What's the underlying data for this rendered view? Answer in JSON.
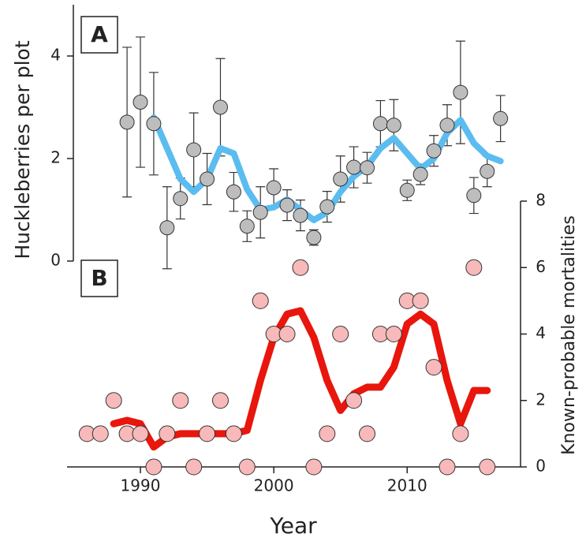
{
  "chart_data": [
    {
      "type": "scatter",
      "panel_label": "A",
      "y_label": "Huckleberries per plot",
      "color": "#bdbdbd",
      "trend_color": "#5bbcf0",
      "x": [
        1989,
        1990,
        1991,
        1992,
        1993,
        1994,
        1995,
        1996,
        1997,
        1998,
        1999,
        2000,
        2001,
        2002,
        2003,
        2004,
        2005,
        2006,
        2007,
        2008,
        2009,
        2010,
        2011,
        2012,
        2013,
        2014,
        2015,
        2016,
        2017
      ],
      "values": [
        2.71,
        3.1,
        2.68,
        0.65,
        1.22,
        2.17,
        1.6,
        3.0,
        1.35,
        0.68,
        0.95,
        1.43,
        1.09,
        0.89,
        0.46,
        1.06,
        1.6,
        1.83,
        1.82,
        2.68,
        2.65,
        1.38,
        1.69,
        2.15,
        2.65,
        3.29,
        1.28,
        1.75,
        2.78
      ],
      "errors": [
        1.46,
        1.27,
        1.0,
        0.8,
        0.4,
        0.72,
        0.5,
        0.95,
        0.38,
        0.3,
        0.5,
        0.37,
        0.3,
        0.3,
        0.15,
        0.3,
        0.45,
        0.4,
        0.3,
        0.45,
        0.5,
        0.2,
        0.2,
        0.3,
        0.4,
        1.0,
        0.35,
        0.3,
        0.45
      ],
      "trend_x": [
        1991,
        1992,
        1993,
        1994,
        1995,
        1996,
        1997,
        1998,
        1999,
        2000,
        2001,
        2002,
        2003,
        2004,
        2005,
        2006,
        2007,
        2008,
        2009,
        2010,
        2011,
        2012,
        2013,
        2014,
        2015,
        2016,
        2017
      ],
      "trend": [
        2.8,
        2.2,
        1.6,
        1.35,
        1.6,
        2.2,
        2.1,
        1.4,
        1.0,
        1.05,
        1.2,
        1.0,
        0.8,
        0.95,
        1.35,
        1.65,
        1.85,
        2.2,
        2.4,
        2.1,
        1.8,
        2.0,
        2.5,
        2.75,
        2.3,
        2.05,
        1.95
      ],
      "ylim": [
        0,
        5
      ],
      "yticks": [
        0,
        2,
        4
      ]
    },
    {
      "type": "scatter",
      "panel_label": "B",
      "x_label": "Year",
      "y_label": "Known-probable mortalities",
      "color": "#f7b9b9",
      "trend_color": "#e8160c",
      "x": [
        1986,
        1987,
        1988,
        1989,
        1990,
        1991,
        1992,
        1993,
        1994,
        1995,
        1996,
        1997,
        1998,
        1999,
        2000,
        2001,
        2002,
        2003,
        2004,
        2005,
        2006,
        2007,
        2008,
        2009,
        2010,
        2011,
        2012,
        2013,
        2014,
        2015,
        2016
      ],
      "values": [
        1,
        1,
        2,
        1,
        1,
        0,
        1,
        2,
        0,
        1,
        2,
        1,
        0,
        5,
        4,
        4,
        6,
        0,
        1,
        4,
        2,
        1,
        4,
        4,
        5,
        5,
        3,
        0,
        1,
        6,
        0
      ],
      "trend_x": [
        1988,
        1989,
        1990,
        1991,
        1992,
        1993,
        1994,
        1995,
        1996,
        1997,
        1998,
        1999,
        2000,
        2001,
        2002,
        2003,
        2004,
        2005,
        2006,
        2007,
        2008,
        2009,
        2010,
        2011,
        2012,
        2013,
        2014,
        2015,
        2016
      ],
      "trend": [
        1.3,
        1.4,
        1.3,
        0.6,
        0.9,
        1.0,
        1.0,
        1.0,
        1.0,
        1.0,
        1.1,
        2.6,
        3.9,
        4.6,
        4.7,
        3.9,
        2.6,
        1.7,
        2.2,
        2.4,
        2.4,
        3.0,
        4.3,
        4.6,
        4.3,
        2.6,
        1.3,
        2.3,
        2.3
      ],
      "ylim": [
        0,
        8
      ],
      "yticks": [
        0,
        2,
        4,
        6,
        8
      ],
      "xlim": [
        1984.5,
        2018.5
      ],
      "xticks": [
        1990,
        2000,
        2010
      ]
    }
  ]
}
